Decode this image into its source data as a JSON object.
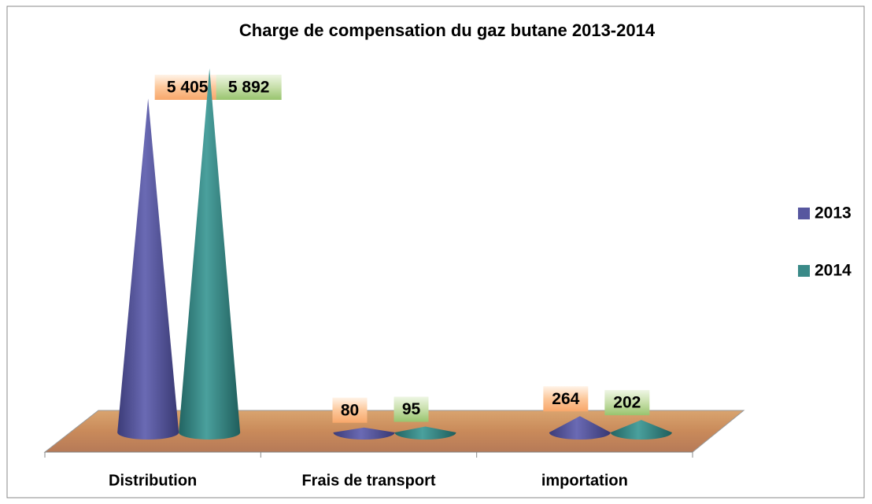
{
  "chart_data": {
    "type": "cone",
    "title": "Charge de compensation du gaz butane 2013-2014",
    "categories": [
      "Distribution",
      "Frais de transport",
      "importation"
    ],
    "series": [
      {
        "name": "2013",
        "color": "#57579f",
        "values": [
          5405,
          80,
          264
        ],
        "value_labels": [
          "5 405",
          "80",
          "264"
        ]
      },
      {
        "name": "2014",
        "color": "#3a8a88",
        "values": [
          5892,
          95,
          202
        ],
        "value_labels": [
          "5 892",
          "95",
          "202"
        ]
      }
    ],
    "legend": "right"
  }
}
